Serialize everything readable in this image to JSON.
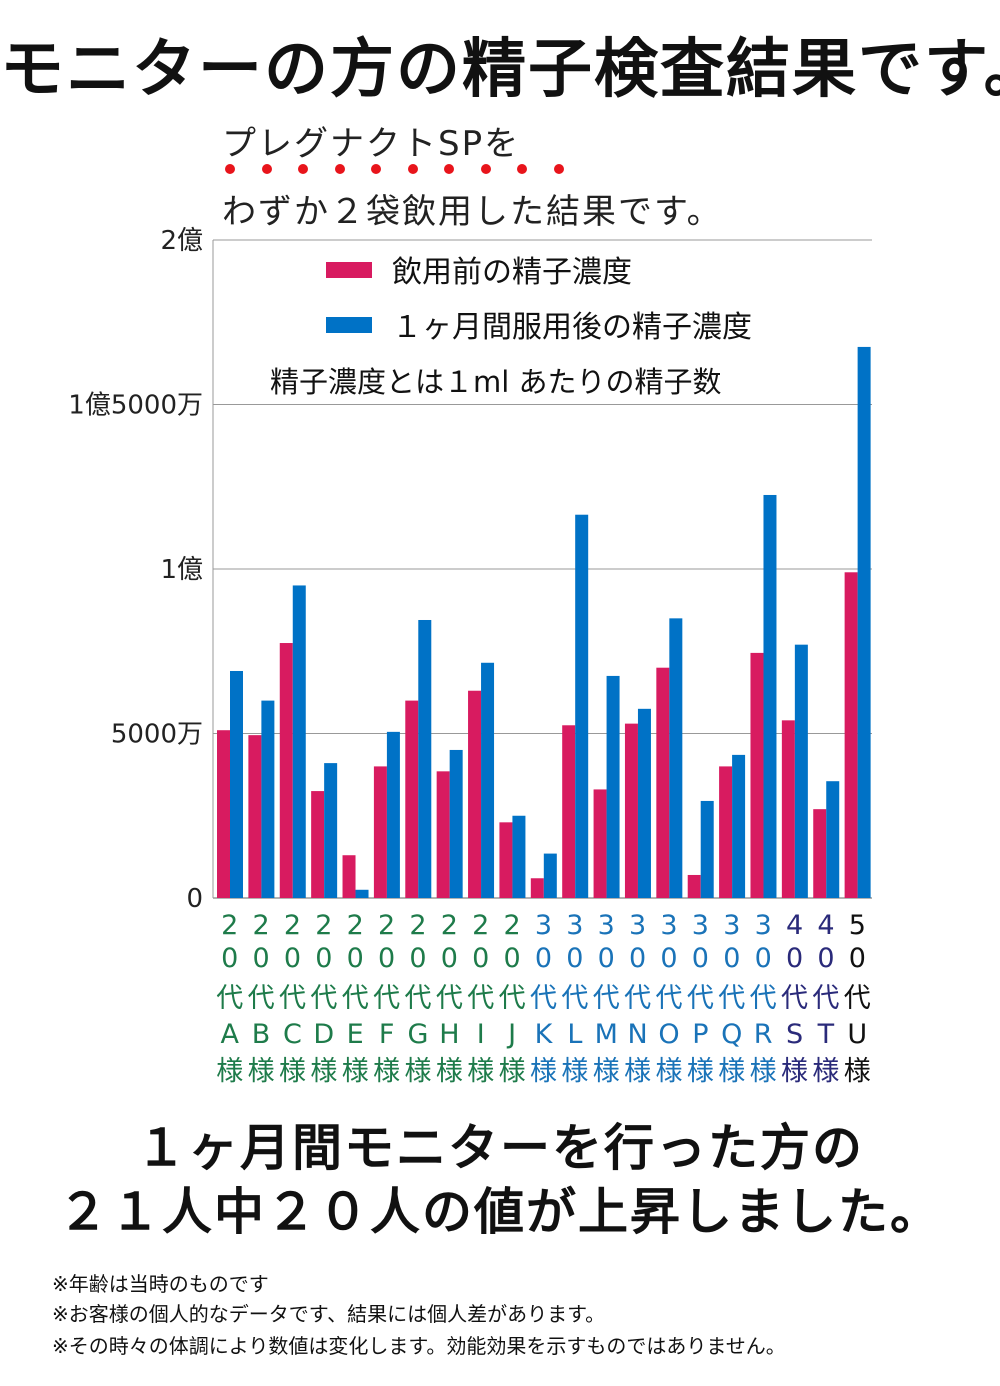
{
  "title": "モニターの方の精子検査結果です。",
  "intro": {
    "line1": "プレグナクトSPを",
    "line2": "わずか２袋飲用した結果です。",
    "emphasis_dot_count": 10,
    "emphasis_dot_color": "#e8141b"
  },
  "colors": {
    "before": "#d81b60",
    "after": "#0072c6",
    "grid": "#999999",
    "label_green": "#1e7b4a",
    "label_blue": "#1a73b8",
    "label_navy": "#2a2a7a",
    "label_black": "#111111"
  },
  "chart_data": {
    "type": "bar",
    "yticks": [
      "0",
      "5000万",
      "1億",
      "1億5000万",
      "2億"
    ],
    "ylim": [
      0,
      200000000
    ],
    "legend": [
      {
        "label": "飲用前の精子濃度",
        "color": "#d81b60"
      },
      {
        "label": "１ヶ月間服用後の精子濃度",
        "color": "#0072c6"
      }
    ],
    "legend_note": "精子濃度とは１ml あたりの精子数",
    "categories": [
      {
        "age": [
          "2",
          "0"
        ],
        "dai": "代",
        "id": "A",
        "sama": "様",
        "group": "green"
      },
      {
        "age": [
          "2",
          "0"
        ],
        "dai": "代",
        "id": "B",
        "sama": "様",
        "group": "green"
      },
      {
        "age": [
          "2",
          "0"
        ],
        "dai": "代",
        "id": "C",
        "sama": "様",
        "group": "green"
      },
      {
        "age": [
          "2",
          "0"
        ],
        "dai": "代",
        "id": "D",
        "sama": "様",
        "group": "green"
      },
      {
        "age": [
          "2",
          "0"
        ],
        "dai": "代",
        "id": "E",
        "sama": "様",
        "group": "green"
      },
      {
        "age": [
          "2",
          "0"
        ],
        "dai": "代",
        "id": "F",
        "sama": "様",
        "group": "green"
      },
      {
        "age": [
          "2",
          "0"
        ],
        "dai": "代",
        "id": "G",
        "sama": "様",
        "group": "green"
      },
      {
        "age": [
          "2",
          "0"
        ],
        "dai": "代",
        "id": "H",
        "sama": "様",
        "group": "green"
      },
      {
        "age": [
          "2",
          "0"
        ],
        "dai": "代",
        "id": "I",
        "sama": "様",
        "group": "green"
      },
      {
        "age": [
          "2",
          "0"
        ],
        "dai": "代",
        "id": "J",
        "sama": "様",
        "group": "green"
      },
      {
        "age": [
          "3",
          "0"
        ],
        "dai": "代",
        "id": "K",
        "sama": "様",
        "group": "blue"
      },
      {
        "age": [
          "3",
          "0"
        ],
        "dai": "代",
        "id": "L",
        "sama": "様",
        "group": "blue"
      },
      {
        "age": [
          "3",
          "0"
        ],
        "dai": "代",
        "id": "M",
        "sama": "様",
        "group": "blue"
      },
      {
        "age": [
          "3",
          "0"
        ],
        "dai": "代",
        "id": "N",
        "sama": "様",
        "group": "blue"
      },
      {
        "age": [
          "3",
          "0"
        ],
        "dai": "代",
        "id": "O",
        "sama": "様",
        "group": "blue"
      },
      {
        "age": [
          "3",
          "0"
        ],
        "dai": "代",
        "id": "P",
        "sama": "様",
        "group": "blue"
      },
      {
        "age": [
          "3",
          "0"
        ],
        "dai": "代",
        "id": "Q",
        "sama": "様",
        "group": "blue"
      },
      {
        "age": [
          "3",
          "0"
        ],
        "dai": "代",
        "id": "R",
        "sama": "様",
        "group": "blue"
      },
      {
        "age": [
          "4",
          "0"
        ],
        "dai": "代",
        "id": "S",
        "sama": "様",
        "group": "navy"
      },
      {
        "age": [
          "4",
          "0"
        ],
        "dai": "代",
        "id": "T",
        "sama": "様",
        "group": "navy"
      },
      {
        "age": [
          "5",
          "0"
        ],
        "dai": "代",
        "id": "U",
        "sama": "様",
        "group": "black"
      }
    ],
    "series": [
      {
        "name": "飲用前の精子濃度",
        "values": [
          51000000,
          49500000,
          77500000,
          32500000,
          13000000,
          40000000,
          60000000,
          38500000,
          63000000,
          23000000,
          6000000,
          52500000,
          33000000,
          53000000,
          70000000,
          7000000,
          40000000,
          74500000,
          54000000,
          27000000,
          99000000
        ]
      },
      {
        "name": "１ヶ月間服用後の精子濃度",
        "values": [
          69000000,
          60000000,
          95000000,
          41000000,
          2500000,
          50500000,
          84500000,
          45000000,
          71500000,
          25000000,
          13500000,
          116500000,
          67500000,
          57500000,
          85000000,
          29500000,
          43500000,
          122500000,
          77000000,
          35500000,
          167500000
        ]
      }
    ]
  },
  "bottom": {
    "line1": "１ヶ月間モニターを行った方の",
    "line2": "２１人中２０人の値が上昇しました。"
  },
  "notes": [
    "※年齢は当時のものです",
    "※お客様の個人的なデータです、結果には個人差があります。",
    "※その時々の体調により数値は変化します。効能効果を示すものではありません。"
  ]
}
